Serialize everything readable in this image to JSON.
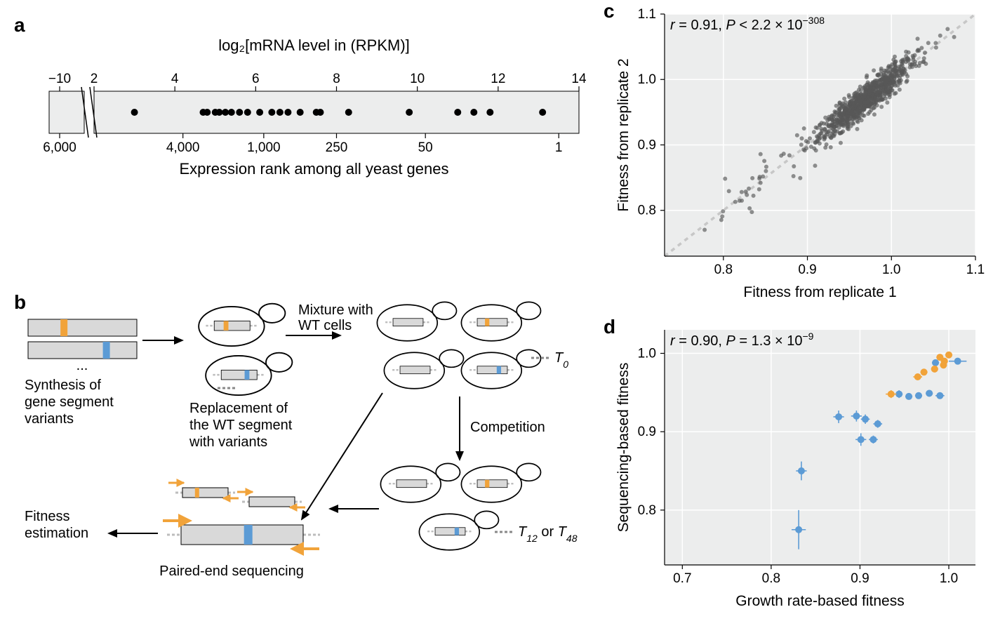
{
  "panelA": {
    "label": "a",
    "topAxisTitle": "log₂[mRNA level in (RPKM)]",
    "bottomAxisTitle": "Expression rank among all yeast genes",
    "topTicks": [
      "−10",
      "2",
      "4",
      "6",
      "8",
      "10",
      "12",
      "14"
    ],
    "bottomTicks": [
      "6,000",
      "4,000",
      "1,000",
      "250",
      "50",
      "1"
    ],
    "points_x": [
      3.0,
      4.7,
      4.8,
      5.0,
      5.1,
      5.25,
      5.4,
      5.6,
      5.8,
      6.1,
      6.4,
      6.6,
      6.8,
      7.1,
      7.5,
      7.6,
      8.3,
      9.8,
      11.0,
      11.4,
      11.8,
      13.1
    ],
    "xlim_left_axis": {
      "break_at": -10,
      "right_start": 2,
      "right_end": 14
    },
    "fill": "#eceded",
    "point_color": "#000000",
    "point_radius": 5
  },
  "panelB": {
    "label": "b",
    "text_synthesis": "Synthesis of\ngene segment\nvariants",
    "text_replacement": "Replacement of\nthe WT segment\nwith variants",
    "text_mixture": "Mixture with\nWT cells",
    "text_competition": "Competition",
    "text_paired": "Paired-end sequencing",
    "text_fitness": "Fitness\nestimation",
    "text_T0": "T₀",
    "text_T12_48": "T₁₂ or T₄₈",
    "text_ellipsis": "...",
    "orange": "#f1a33a",
    "blue": "#5c9bd5",
    "segment_fill": "#d9d9d9"
  },
  "panelC": {
    "label": "c",
    "stat_text": "r = 0.91, P < 2.2 × 10⁻³⁰⁸",
    "xlabel": "Fitness from replicate 1",
    "ylabel": "Fitness from replicate 2",
    "xlim": [
      0.73,
      1.1
    ],
    "ylim": [
      0.73,
      1.1
    ],
    "xticks": [
      0.8,
      0.9,
      1.0,
      1.1
    ],
    "yticks": [
      0.8,
      0.9,
      1.0,
      1.1
    ],
    "identity_line": true,
    "identity_color": "#c7c7c7",
    "identity_dash": "6 6",
    "point_color": "#585858",
    "point_radius": 3.0,
    "point_opacity": 0.65,
    "background": "#eceded",
    "n_points": 900
  },
  "panelD": {
    "label": "d",
    "stat_text": "r = 0.90, P = 1.3 × 10⁻⁹",
    "xlabel": "Growth rate-based fitness",
    "ylabel": "Sequencing-based fitness",
    "xlim": [
      0.68,
      1.03
    ],
    "ylim": [
      0.73,
      1.03
    ],
    "xticks": [
      0.7,
      0.8,
      0.9,
      1.0
    ],
    "yticks": [
      0.8,
      0.9,
      1.0
    ],
    "background": "#eceded",
    "point_radius": 5,
    "orange": "#f1a33a",
    "blue": "#5c9bd5",
    "blue_points": [
      {
        "x": 0.831,
        "y": 0.775,
        "ex": 0.008,
        "ey": 0.025
      },
      {
        "x": 0.834,
        "y": 0.85,
        "ex": 0.006,
        "ey": 0.012
      },
      {
        "x": 0.876,
        "y": 0.919,
        "ex": 0.006,
        "ey": 0.008
      },
      {
        "x": 0.901,
        "y": 0.89,
        "ex": 0.006,
        "ey": 0.008
      },
      {
        "x": 0.896,
        "y": 0.92,
        "ex": 0.006,
        "ey": 0.007
      },
      {
        "x": 0.906,
        "y": 0.916,
        "ex": 0.005,
        "ey": 0.006
      },
      {
        "x": 0.915,
        "y": 0.89,
        "ex": 0.005,
        "ey": 0.005
      },
      {
        "x": 0.92,
        "y": 0.91,
        "ex": 0.005,
        "ey": 0.005
      },
      {
        "x": 0.944,
        "y": 0.948,
        "ex": 0.004,
        "ey": 0.005
      },
      {
        "x": 0.955,
        "y": 0.945,
        "ex": 0.004,
        "ey": 0.004
      },
      {
        "x": 0.966,
        "y": 0.946,
        "ex": 0.004,
        "ey": 0.004
      },
      {
        "x": 0.978,
        "y": 0.949,
        "ex": 0.004,
        "ey": 0.004
      },
      {
        "x": 0.99,
        "y": 0.946,
        "ex": 0.005,
        "ey": 0.004
      },
      {
        "x": 1.01,
        "y": 0.99,
        "ex": 0.01,
        "ey": 0.004
      },
      {
        "x": 0.985,
        "y": 0.988,
        "ex": 0.004,
        "ey": 0.004
      }
    ],
    "orange_points": [
      {
        "x": 0.935,
        "y": 0.948,
        "ex": 0.006,
        "ey": 0.005
      },
      {
        "x": 0.965,
        "y": 0.97,
        "ex": 0.005,
        "ey": 0.004
      },
      {
        "x": 0.972,
        "y": 0.976,
        "ex": 0.004,
        "ey": 0.004
      },
      {
        "x": 0.984,
        "y": 0.98,
        "ex": 0.004,
        "ey": 0.004
      },
      {
        "x": 0.99,
        "y": 0.995,
        "ex": 0.004,
        "ey": 0.004
      },
      {
        "x": 0.995,
        "y": 0.99,
        "ex": 0.004,
        "ey": 0.004
      },
      {
        "x": 1.0,
        "y": 0.998,
        "ex": 0.004,
        "ey": 0.004
      },
      {
        "x": 0.994,
        "y": 0.985,
        "ex": 0.004,
        "ey": 0.004
      }
    ]
  }
}
